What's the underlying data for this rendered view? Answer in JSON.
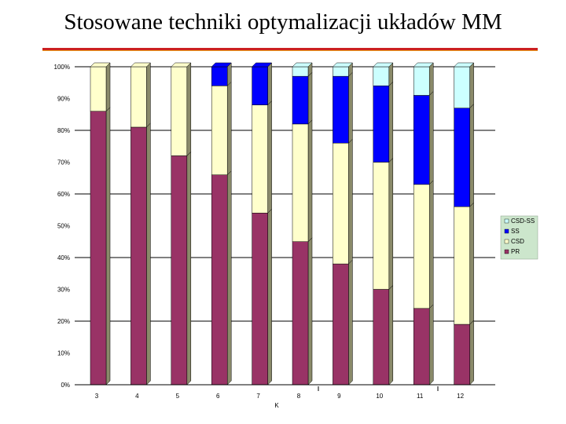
{
  "slide": {
    "title": "Stosowane techniki optymalizacji układów MM"
  },
  "colors": {
    "PR": "#993366",
    "CSD": "#ffffcc",
    "SS": "#0000ff",
    "CSD-SS": "#ccffff",
    "legend_bg": "#cce6cc",
    "gridline": "#000000"
  },
  "chart_data": {
    "type": "bar",
    "stacked": true,
    "percent": true,
    "categories": [
      "3",
      "4",
      "5",
      "6",
      "7",
      "8",
      "9",
      "10",
      "11",
      "12"
    ],
    "xlabel": "K",
    "ylabel": "",
    "ylim": [
      0,
      100
    ],
    "yticks": [
      "0%",
      "10%",
      "20%",
      "30%",
      "40%",
      "50%",
      "60%",
      "70%",
      "80%",
      "90%",
      "100%"
    ],
    "grid": true,
    "legend": "right",
    "series": [
      {
        "name": "PR",
        "values": [
          86,
          81,
          72,
          66,
          54,
          45,
          38,
          30,
          24,
          19
        ]
      },
      {
        "name": "CSD",
        "values": [
          14,
          19,
          28,
          28,
          34,
          37,
          38,
          40,
          39,
          37
        ]
      },
      {
        "name": "SS",
        "values": [
          0,
          0,
          0,
          6,
          12,
          15,
          21,
          24,
          28,
          31
        ]
      },
      {
        "name": "CSD-SS",
        "values": [
          0,
          0,
          0,
          0,
          0,
          3,
          3,
          6,
          9,
          13
        ]
      }
    ],
    "legend_order": [
      "CSD-SS",
      "SS",
      "CSD",
      "PR"
    ]
  }
}
